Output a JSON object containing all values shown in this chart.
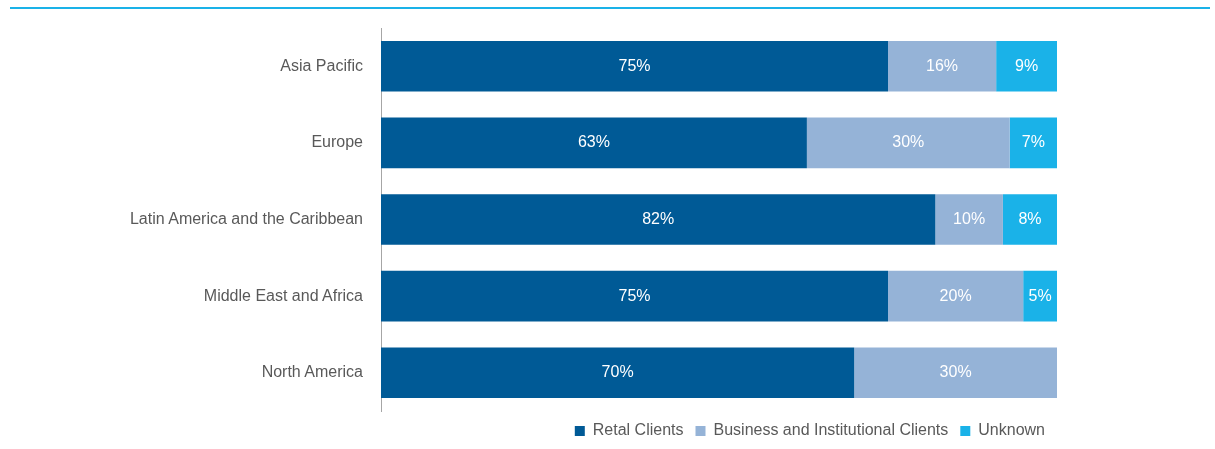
{
  "chart_data": {
    "type": "bar",
    "orientation": "horizontal",
    "stacked": true,
    "categories": [
      "Asia Pacific",
      "Europe",
      "Latin America and the Caribbean",
      "Middle East and Africa",
      "North America"
    ],
    "series": [
      {
        "name": "Retal Clients",
        "color": "#005a96",
        "values": [
          75,
          63,
          82,
          75,
          70
        ],
        "value_labels": [
          "75%",
          "63%",
          "82%",
          "75%",
          "70%"
        ]
      },
      {
        "name": "Business and Institutional Clients",
        "color": "#95b3d7",
        "values": [
          16,
          30,
          10,
          20,
          30
        ],
        "value_labels": [
          "16%",
          "30%",
          "10%",
          "20%",
          "30%"
        ]
      },
      {
        "name": "Unknown",
        "color": "#1ab2e8",
        "values": [
          9,
          7,
          8,
          5,
          null
        ],
        "value_labels": [
          "9%",
          "7%",
          "8%",
          "5%",
          null
        ]
      }
    ],
    "xlim": [
      0,
      100
    ],
    "grid": false,
    "legend": "bottom right"
  }
}
